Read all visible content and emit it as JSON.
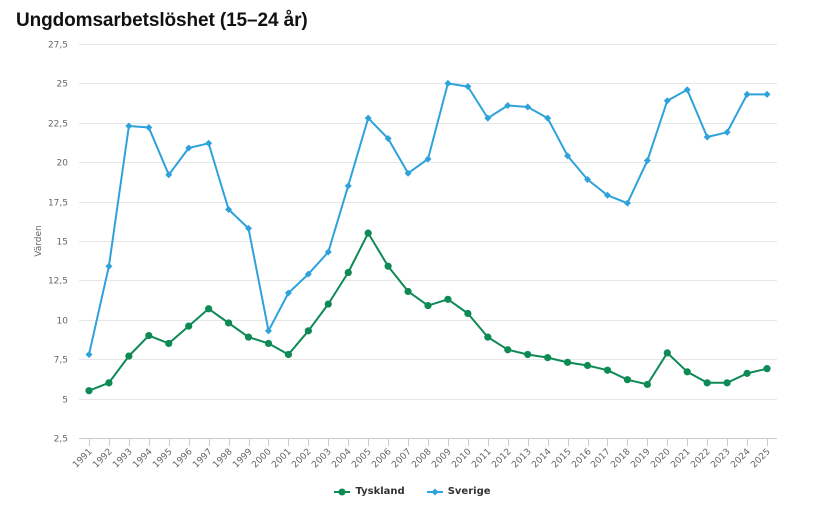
{
  "chart_data": {
    "type": "line",
    "title": "Ungdomsarbetslöshet (15–24 år)",
    "xlabel": "",
    "ylabel": "Värden",
    "ylim": [
      2.5,
      27.5
    ],
    "yticks": [
      "2,5",
      "5",
      "7,5",
      "10",
      "12,5",
      "15",
      "17,5",
      "20",
      "22,5",
      "25",
      "27,5"
    ],
    "ytick_values": [
      2.5,
      5,
      7.5,
      10,
      12.5,
      15,
      17.5,
      20,
      22.5,
      25,
      27.5
    ],
    "grid": true,
    "legend_position": "bottom",
    "categories": [
      "1991",
      "1992",
      "1993",
      "1994",
      "1995",
      "1996",
      "1997",
      "1998",
      "1999",
      "2000",
      "2001",
      "2002",
      "2003",
      "2004",
      "2005",
      "2006",
      "2007",
      "2008",
      "2009",
      "2010",
      "2011",
      "2012",
      "2013",
      "2014",
      "2015",
      "2016",
      "2017",
      "2018",
      "2019",
      "2020",
      "2021",
      "2022",
      "2023",
      "2024",
      "2025"
    ],
    "series": [
      {
        "name": "Tyskland",
        "color": "#0e8a55",
        "marker": "circle",
        "values": [
          5.5,
          6.0,
          7.7,
          9.0,
          8.5,
          9.6,
          10.7,
          9.8,
          8.9,
          8.5,
          7.8,
          9.3,
          11.0,
          13.0,
          15.5,
          13.4,
          11.8,
          10.9,
          11.3,
          10.4,
          8.9,
          8.1,
          7.8,
          7.6,
          7.3,
          7.1,
          6.8,
          6.2,
          5.9,
          7.9,
          6.7,
          6.0,
          6.0,
          6.6,
          6.9
        ]
      },
      {
        "name": "Sverige",
        "color": "#2ea3db",
        "marker": "diamond",
        "values": [
          7.8,
          13.4,
          22.3,
          22.2,
          19.2,
          20.9,
          21.2,
          17.0,
          15.8,
          9.3,
          11.7,
          12.9,
          14.3,
          18.5,
          22.8,
          21.5,
          19.3,
          20.2,
          25.0,
          24.8,
          22.8,
          23.6,
          23.5,
          22.8,
          20.4,
          18.9,
          17.9,
          17.4,
          20.1,
          23.9,
          24.6,
          21.6,
          21.9,
          24.3,
          24.3
        ]
      }
    ]
  },
  "legend": {
    "items": [
      {
        "label": "Tyskland",
        "color": "#0e8a55"
      },
      {
        "label": "Sverige",
        "color": "#2ea3db"
      }
    ]
  }
}
